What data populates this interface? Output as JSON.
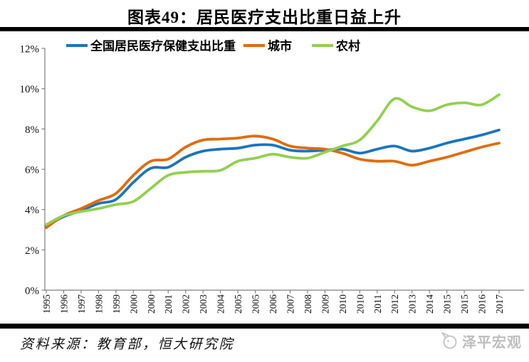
{
  "page": {
    "title": "图表49：居民医疗支出比重日益上升",
    "source_note": "资料来源：教育部，恒大研究院",
    "watermark": "泽平宏观"
  },
  "colors": {
    "axis": "#7f7f7f",
    "text": "#000000",
    "watermark_gray": "#bdbdbd"
  },
  "chart_data": {
    "type": "line",
    "title": "图表49：居民医疗支出比重日益上升",
    "xlabel": "",
    "ylabel": "",
    "ylim": [
      0,
      12
    ],
    "y_ticks": [
      "0%",
      "2%",
      "4%",
      "6%",
      "8%",
      "10%",
      "12%"
    ],
    "grid": false,
    "legend_position": "top",
    "x_labels": [
      "1995",
      "1996",
      "1997",
      "1998",
      "1999",
      "2000",
      "2000",
      "2001",
      "2002",
      "2003",
      "2004",
      "2005",
      "2005",
      "2006",
      "2007",
      "2008",
      "2009",
      "2010",
      "2010",
      "2011",
      "2012",
      "2013",
      "2014",
      "2015",
      "2015",
      "2016",
      "2017"
    ],
    "series": [
      {
        "id": "national",
        "name": "全国居民医疗保健支出比重",
        "color": "#1B75BC",
        "values": [
          3.2,
          3.65,
          3.95,
          4.3,
          4.5,
          5.35,
          6.05,
          6.1,
          6.6,
          6.9,
          7.0,
          7.05,
          7.2,
          7.2,
          6.95,
          6.9,
          6.95,
          7.0,
          6.8,
          7.0,
          7.15,
          6.9,
          7.05,
          7.3,
          7.5,
          7.7,
          7.95
        ]
      },
      {
        "id": "urban",
        "name": "城市",
        "color": "#E06C0D",
        "values": [
          3.1,
          3.7,
          4.05,
          4.45,
          4.8,
          5.7,
          6.4,
          6.5,
          7.1,
          7.45,
          7.5,
          7.55,
          7.65,
          7.5,
          7.15,
          7.05,
          7.0,
          6.8,
          6.5,
          6.4,
          6.4,
          6.2,
          6.4,
          6.6,
          6.85,
          7.1,
          7.3
        ]
      },
      {
        "id": "rural",
        "name": "农村",
        "color": "#92D050",
        "values": [
          3.25,
          3.7,
          3.9,
          4.05,
          4.25,
          4.4,
          5.05,
          5.7,
          5.85,
          5.9,
          5.95,
          6.4,
          6.55,
          6.75,
          6.6,
          6.55,
          6.85,
          7.15,
          7.45,
          8.4,
          9.5,
          9.1,
          8.9,
          9.2,
          9.3,
          9.2,
          9.7
        ]
      }
    ]
  }
}
